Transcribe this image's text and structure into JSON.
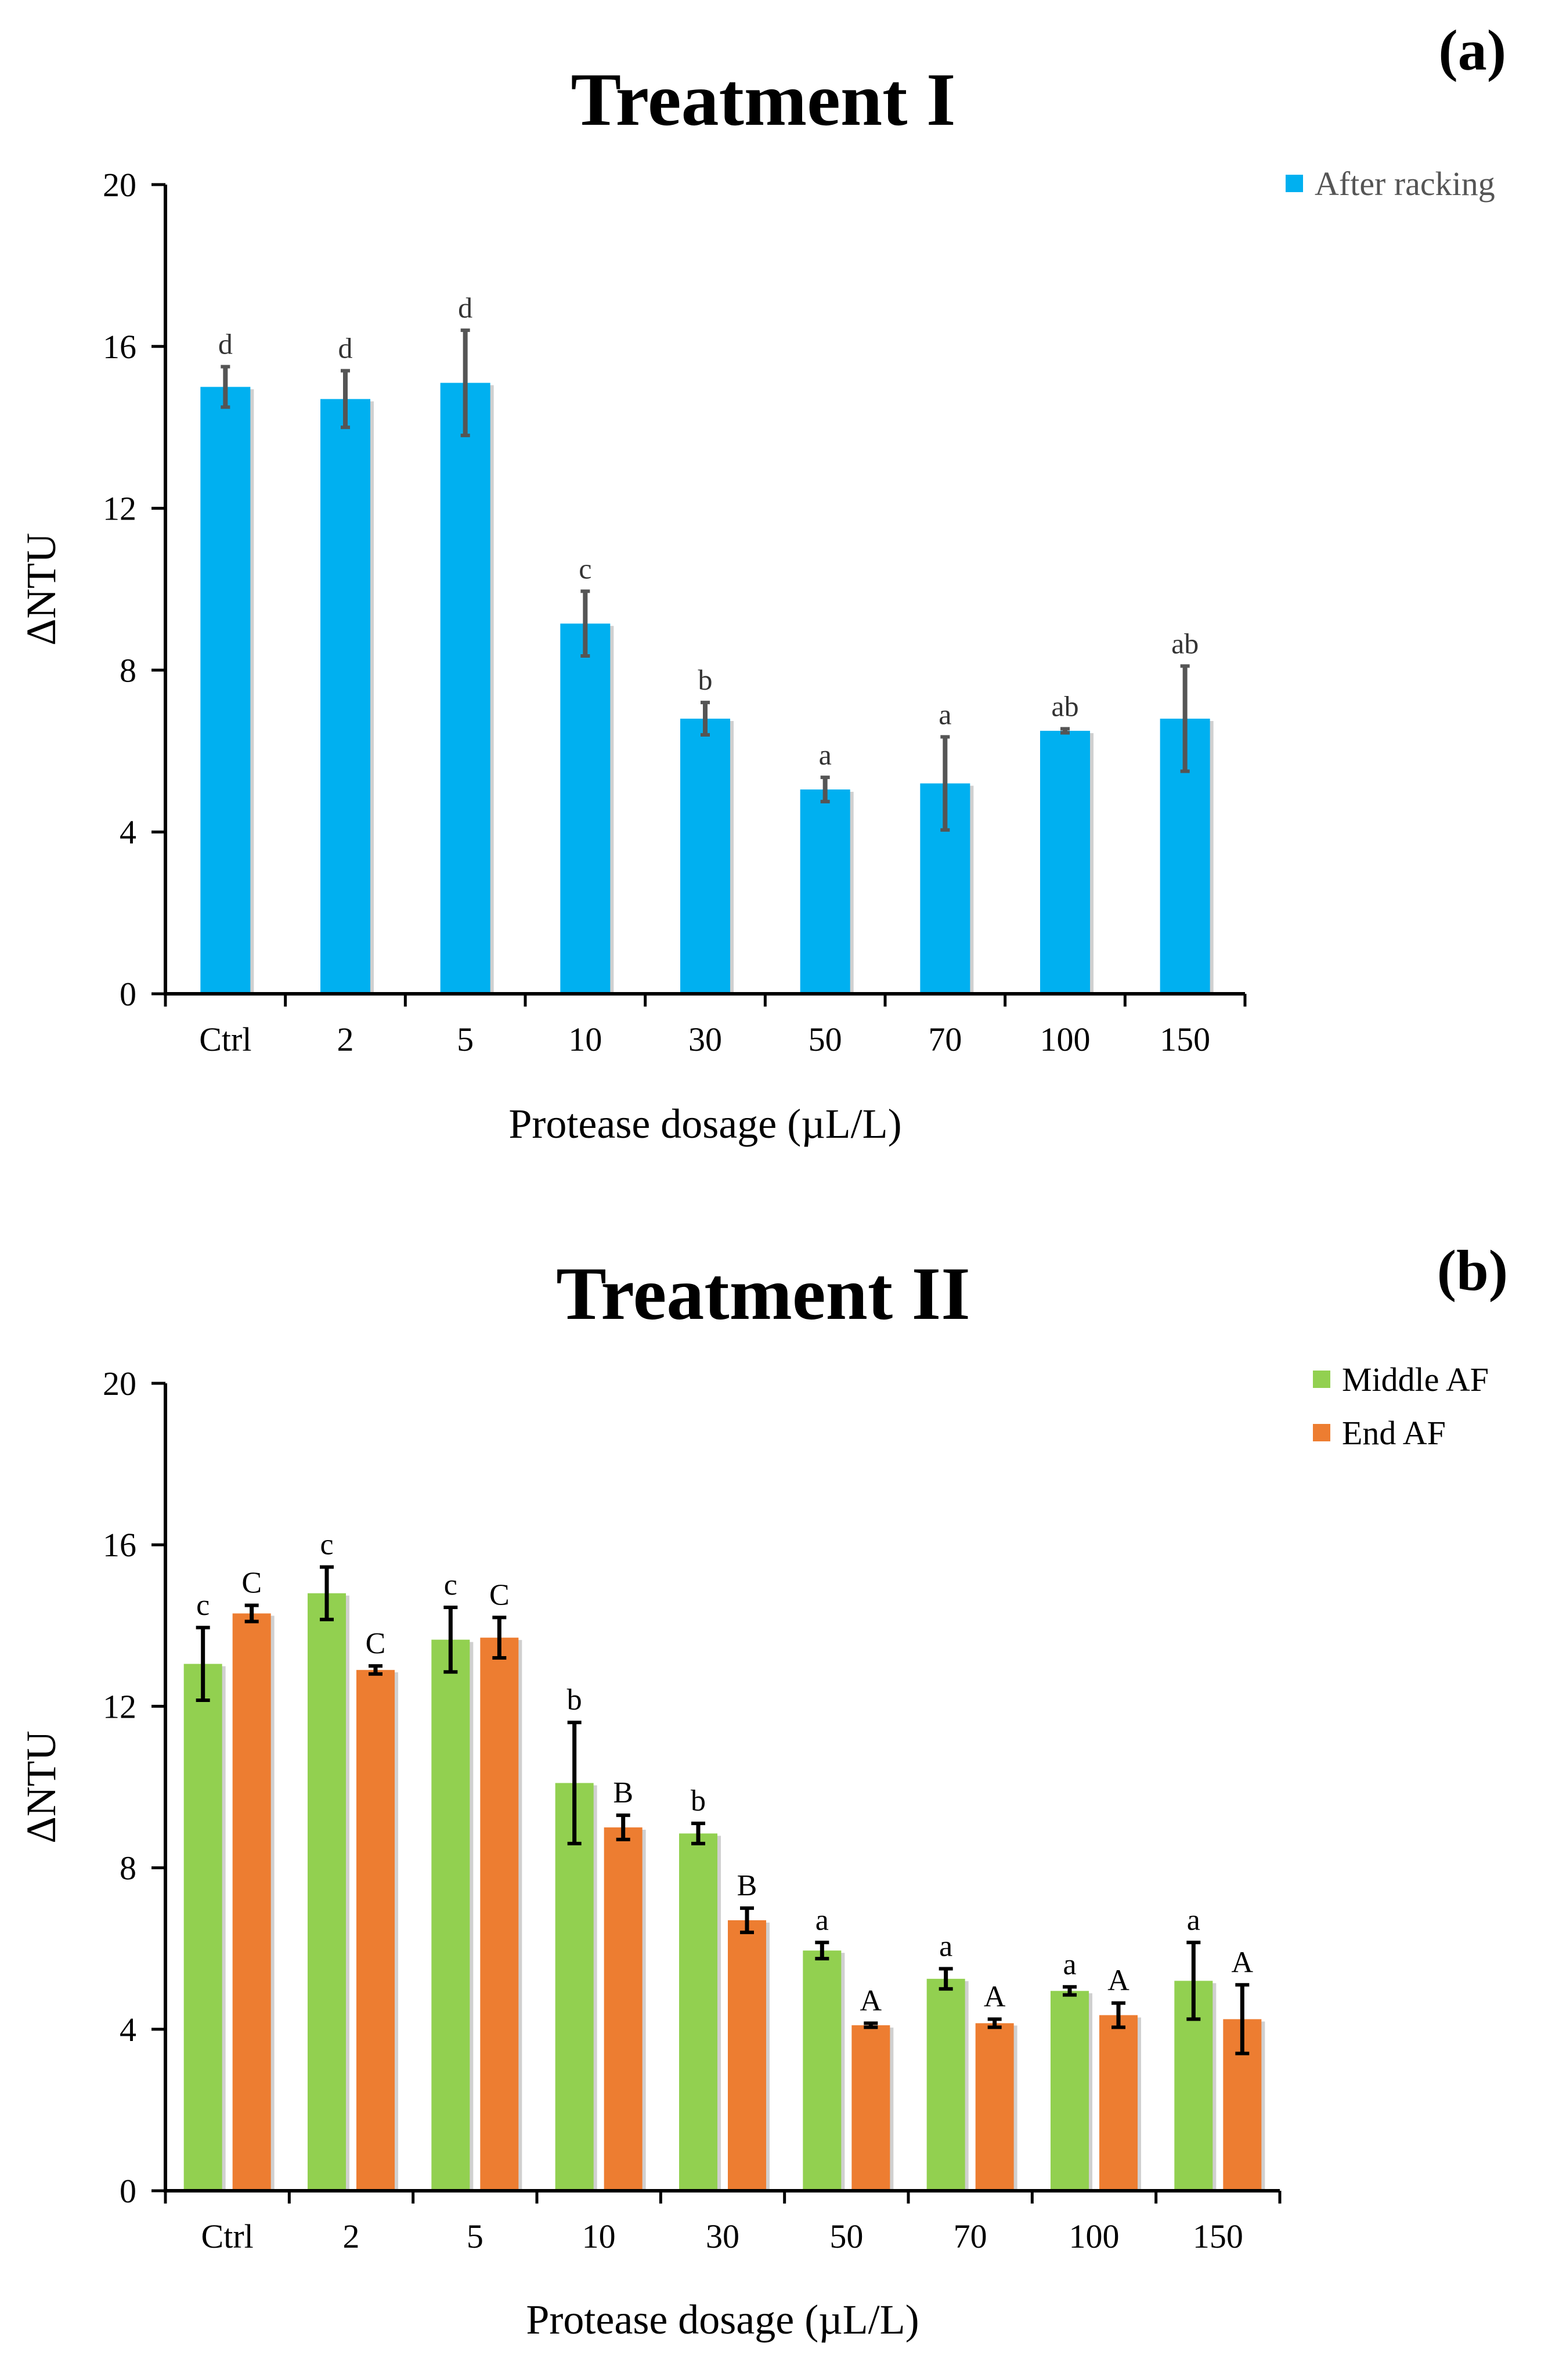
{
  "chart_data": [
    {
      "panel_label": "(a)",
      "type": "bar",
      "title": "Treatment I",
      "xlabel": "Protease dosage (µL/L)",
      "ylabel": "ΔNTU",
      "ylim": [
        0,
        20
      ],
      "yticks": [
        "0",
        "4",
        "8",
        "12",
        "16",
        "20"
      ],
      "categories": [
        "Ctrl",
        "2",
        "5",
        "10",
        "30",
        "50",
        "70",
        "100",
        "150"
      ],
      "legend_position": "top-right",
      "series": [
        {
          "name": "After racking",
          "color": "#00b0f0",
          "error_color": "#555555",
          "label_color": "#444444",
          "values": [
            15.0,
            14.7,
            15.1,
            9.15,
            6.8,
            5.05,
            5.2,
            6.5,
            6.8
          ],
          "errors": [
            0.5,
            0.7,
            1.3,
            0.8,
            0.4,
            0.3,
            1.15,
            0.05,
            1.3
          ],
          "labels": [
            "d",
            "d",
            "d",
            "c",
            "b",
            "a",
            "a",
            "ab",
            "ab"
          ]
        }
      ]
    },
    {
      "panel_label": "(b)",
      "type": "bar",
      "title": "Treatment II",
      "xlabel": "Protease dosage (µL/L)",
      "ylabel": "ΔNTU",
      "ylim": [
        0,
        20
      ],
      "yticks": [
        "0",
        "4",
        "8",
        "12",
        "16",
        "20"
      ],
      "categories": [
        "Ctrl",
        "2",
        "5",
        "10",
        "30",
        "50",
        "70",
        "100",
        "150"
      ],
      "legend_position": "top-right",
      "series": [
        {
          "name": "Middle AF",
          "color": "#92d050",
          "error_color": "#000000",
          "label_color": "#333333",
          "values": [
            13.05,
            14.8,
            13.65,
            10.1,
            8.85,
            5.95,
            5.25,
            4.95,
            5.2
          ],
          "errors": [
            0.9,
            0.65,
            0.8,
            1.5,
            0.25,
            0.2,
            0.25,
            0.1,
            0.95
          ],
          "labels": [
            "c",
            "c",
            "c",
            "b",
            "b",
            "a",
            "a",
            "a",
            "a"
          ]
        },
        {
          "name": "End AF",
          "color": "#ed7d31",
          "error_color": "#000000",
          "label_color": "#000000",
          "values": [
            14.3,
            12.9,
            13.7,
            9.0,
            6.7,
            4.1,
            4.15,
            4.35,
            4.25
          ],
          "errors": [
            0.2,
            0.1,
            0.5,
            0.3,
            0.3,
            0.05,
            0.1,
            0.3,
            0.85
          ],
          "labels": [
            "C",
            "C",
            "C",
            "B",
            "B",
            "A",
            "A",
            "A",
            "A"
          ]
        }
      ]
    }
  ]
}
